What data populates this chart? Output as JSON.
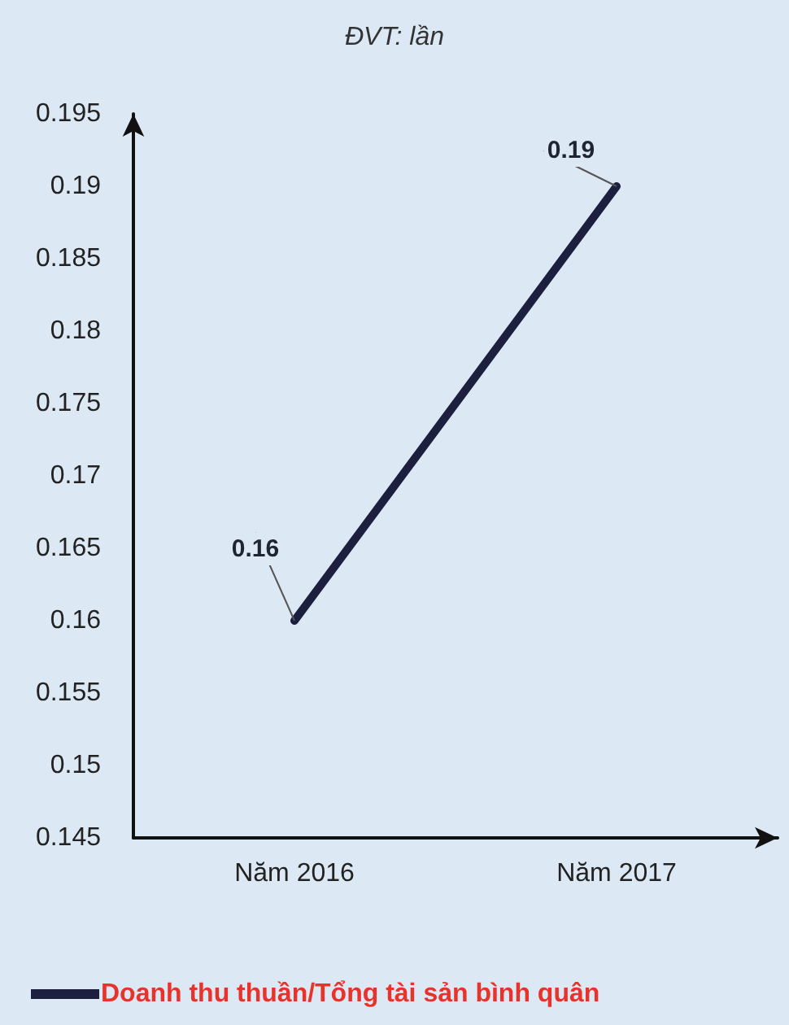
{
  "chart_data": {
    "type": "line",
    "title": "ĐVT: lần",
    "categories": [
      "Năm 2016",
      "Năm 2017"
    ],
    "series": [
      {
        "name": "Doanh thu thuần/Tổng tài sản bình quân",
        "color": "#1c1f3d",
        "values": [
          0.16,
          0.19
        ]
      }
    ],
    "ylim": [
      0.145,
      0.195
    ],
    "yticks": [
      0.145,
      0.15,
      0.155,
      0.16,
      0.165,
      0.17,
      0.175,
      0.18,
      0.185,
      0.19,
      0.195
    ],
    "data_labels": true,
    "legend": "bottom left",
    "marker": "none",
    "line_style": "solid",
    "grid": false
  }
}
